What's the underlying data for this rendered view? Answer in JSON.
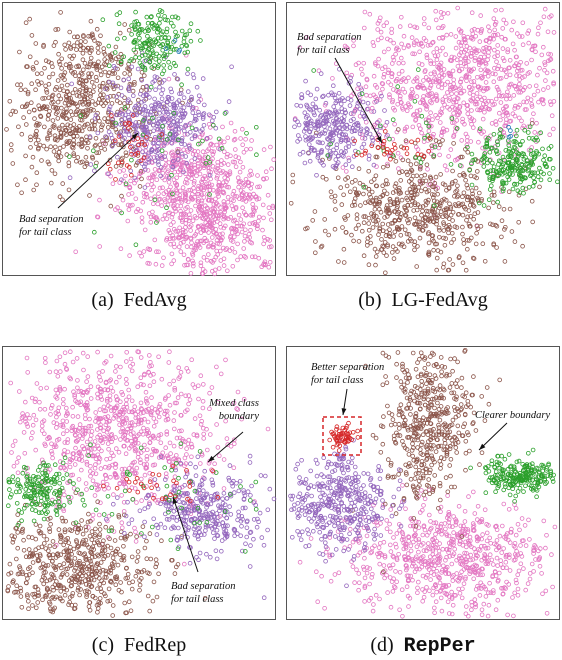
{
  "panels": [
    {
      "id": "a",
      "caption_tag": "(a)",
      "caption_name": "FedAvg",
      "annotations": [
        {
          "lines": [
            "Bad separation",
            "for tail class"
          ]
        }
      ]
    },
    {
      "id": "b",
      "caption_tag": "(b)",
      "caption_name": "LG-FedAvg",
      "annotations": [
        {
          "lines": [
            "Bad separation",
            "for tail class"
          ]
        }
      ]
    },
    {
      "id": "c",
      "caption_tag": "(c)",
      "caption_name": "FedRep",
      "annotations": [
        {
          "lines": [
            "Mixed class",
            "boundary"
          ]
        },
        {
          "lines": [
            "Bad separation",
            "for tail class"
          ]
        }
      ]
    },
    {
      "id": "d",
      "caption_tag": "(d)",
      "caption_name": "RepPer",
      "annotations": [
        {
          "lines": [
            "Better separation",
            "for tail class"
          ]
        },
        {
          "lines": [
            "Clearer boundary"
          ]
        }
      ]
    }
  ],
  "colors": {
    "pink": "#e377c2",
    "brown": "#8c564b",
    "purple": "#9467bd",
    "green": "#2ca02c",
    "red": "#d62728",
    "blue": "#1f77b4",
    "highlight_box": "#d62728"
  }
}
